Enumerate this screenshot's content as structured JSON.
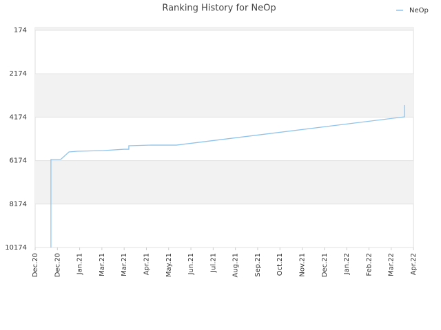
{
  "chart_data": {
    "type": "line",
    "title": "Ranking History for NeOp",
    "x": [
      0.71,
      0.71,
      1.15,
      1.52,
      1.89,
      3.07,
      4.0,
      4.21,
      4.21,
      5.23,
      6.35,
      16.6,
      16.6
    ],
    "series": [
      {
        "name": "NeOp",
        "color": "#8ec3ec",
        "values": [
          10174,
          6120,
          6120,
          5775,
          5744,
          5712,
          5650,
          5650,
          5490,
          5460,
          5460,
          4160,
          3620
        ]
      }
    ],
    "xlim": [
      0,
      17
    ],
    "xticks": [
      {
        "value": 0,
        "label": "Dec.20"
      },
      {
        "value": 1,
        "label": "Dec.20"
      },
      {
        "value": 2,
        "label": "Jan.21"
      },
      {
        "value": 3,
        "label": "Mar.21"
      },
      {
        "value": 4,
        "label": "Mar.21"
      },
      {
        "value": 5,
        "label": "Apr.21"
      },
      {
        "value": 6,
        "label": "May.21"
      },
      {
        "value": 7,
        "label": "Jun.21"
      },
      {
        "value": 8,
        "label": "Jul.21"
      },
      {
        "value": 9,
        "label": "Aug.21"
      },
      {
        "value": 10,
        "label": "Sep.21"
      },
      {
        "value": 11,
        "label": "Oct.21"
      },
      {
        "value": 12,
        "label": "Nov.21"
      },
      {
        "value": 13,
        "label": "Dec.21"
      },
      {
        "value": 14,
        "label": "Jan.22"
      },
      {
        "value": 15,
        "label": "Feb.22"
      },
      {
        "value": 16,
        "label": "Mar.22"
      },
      {
        "value": 17,
        "label": "Apr.22"
      }
    ],
    "ylim": [
      10174,
      174
    ],
    "yticks": [
      174,
      2174,
      4174,
      6174,
      8174,
      10174
    ],
    "grid": true,
    "legend": "top-right"
  }
}
